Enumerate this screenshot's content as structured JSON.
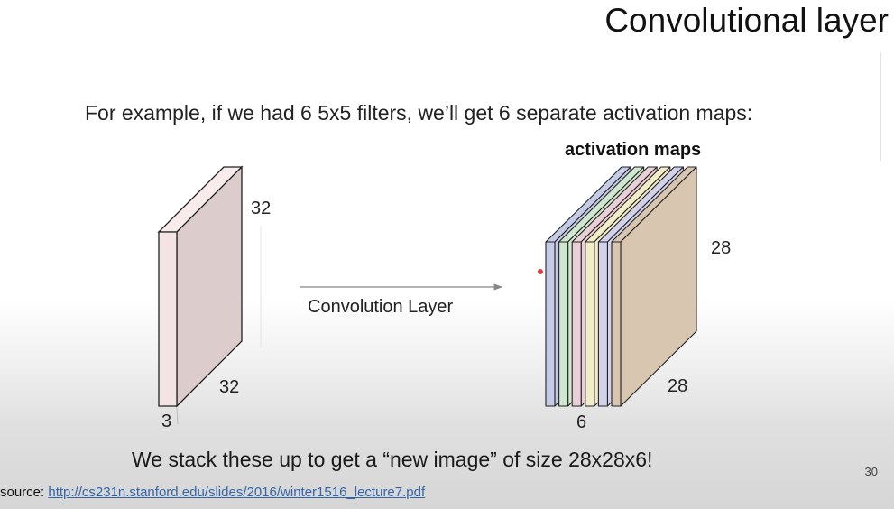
{
  "slide": {
    "title": "Convolutional layer",
    "subtitle": "For example, if we had 6 5x5 filters, we’ll get 6 separate activation maps:",
    "footer": "We stack these up to get a “new image” of size 28x28x6!",
    "source_prefix": "source: ",
    "source_link": "http://cs231n.stanford.edu/slides/2016/winter1516_lecture7.pdf",
    "page_number": "30"
  },
  "diagram": {
    "input_volume": {
      "height_label": "32",
      "width_label": "32",
      "depth_label": "3"
    },
    "operation_label": "Convolution Layer",
    "output_volume": {
      "title": "activation maps",
      "height_label": "28",
      "width_label": "28",
      "depth_label": "6",
      "map_colors": [
        "#c5cbe6",
        "#cfe6cf",
        "#ead0d6",
        "#f2ecc8",
        "#d2d3ea",
        "#d9c6b0"
      ]
    }
  }
}
